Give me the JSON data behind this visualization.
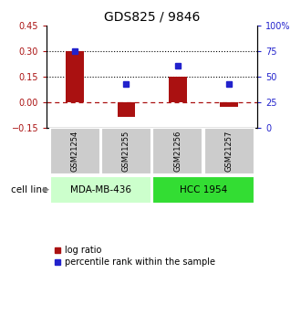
{
  "title": "GDS825 / 9846",
  "samples": [
    "GSM21254",
    "GSM21255",
    "GSM21256",
    "GSM21257"
  ],
  "log_ratios": [
    0.3,
    -0.085,
    0.15,
    -0.03
  ],
  "percentile_ranks": [
    0.75,
    0.43,
    0.6,
    0.43
  ],
  "bar_color": "#aa1111",
  "dot_color": "#2222cc",
  "left_ylim": [
    -0.15,
    0.45
  ],
  "left_yticks": [
    -0.15,
    0.0,
    0.15,
    0.3,
    0.45
  ],
  "right_yticks": [
    0,
    25,
    50,
    75,
    100
  ],
  "hline_dotted": [
    0.15,
    0.3
  ],
  "hline_dashed": 0.0,
  "cell_lines": [
    {
      "label": "MDA-MB-436",
      "samples": [
        0,
        1
      ],
      "color": "#ccffcc"
    },
    {
      "label": "HCC 1954",
      "samples": [
        2,
        3
      ],
      "color": "#33dd33"
    }
  ],
  "cell_line_label": "cell line",
  "legend_red": "log ratio",
  "legend_blue": "percentile rank within the sample",
  "bar_width": 0.35,
  "title_fontsize": 10,
  "tick_fontsize": 7,
  "sample_fontsize": 6,
  "cell_fontsize": 7.5,
  "legend_fontsize": 7
}
